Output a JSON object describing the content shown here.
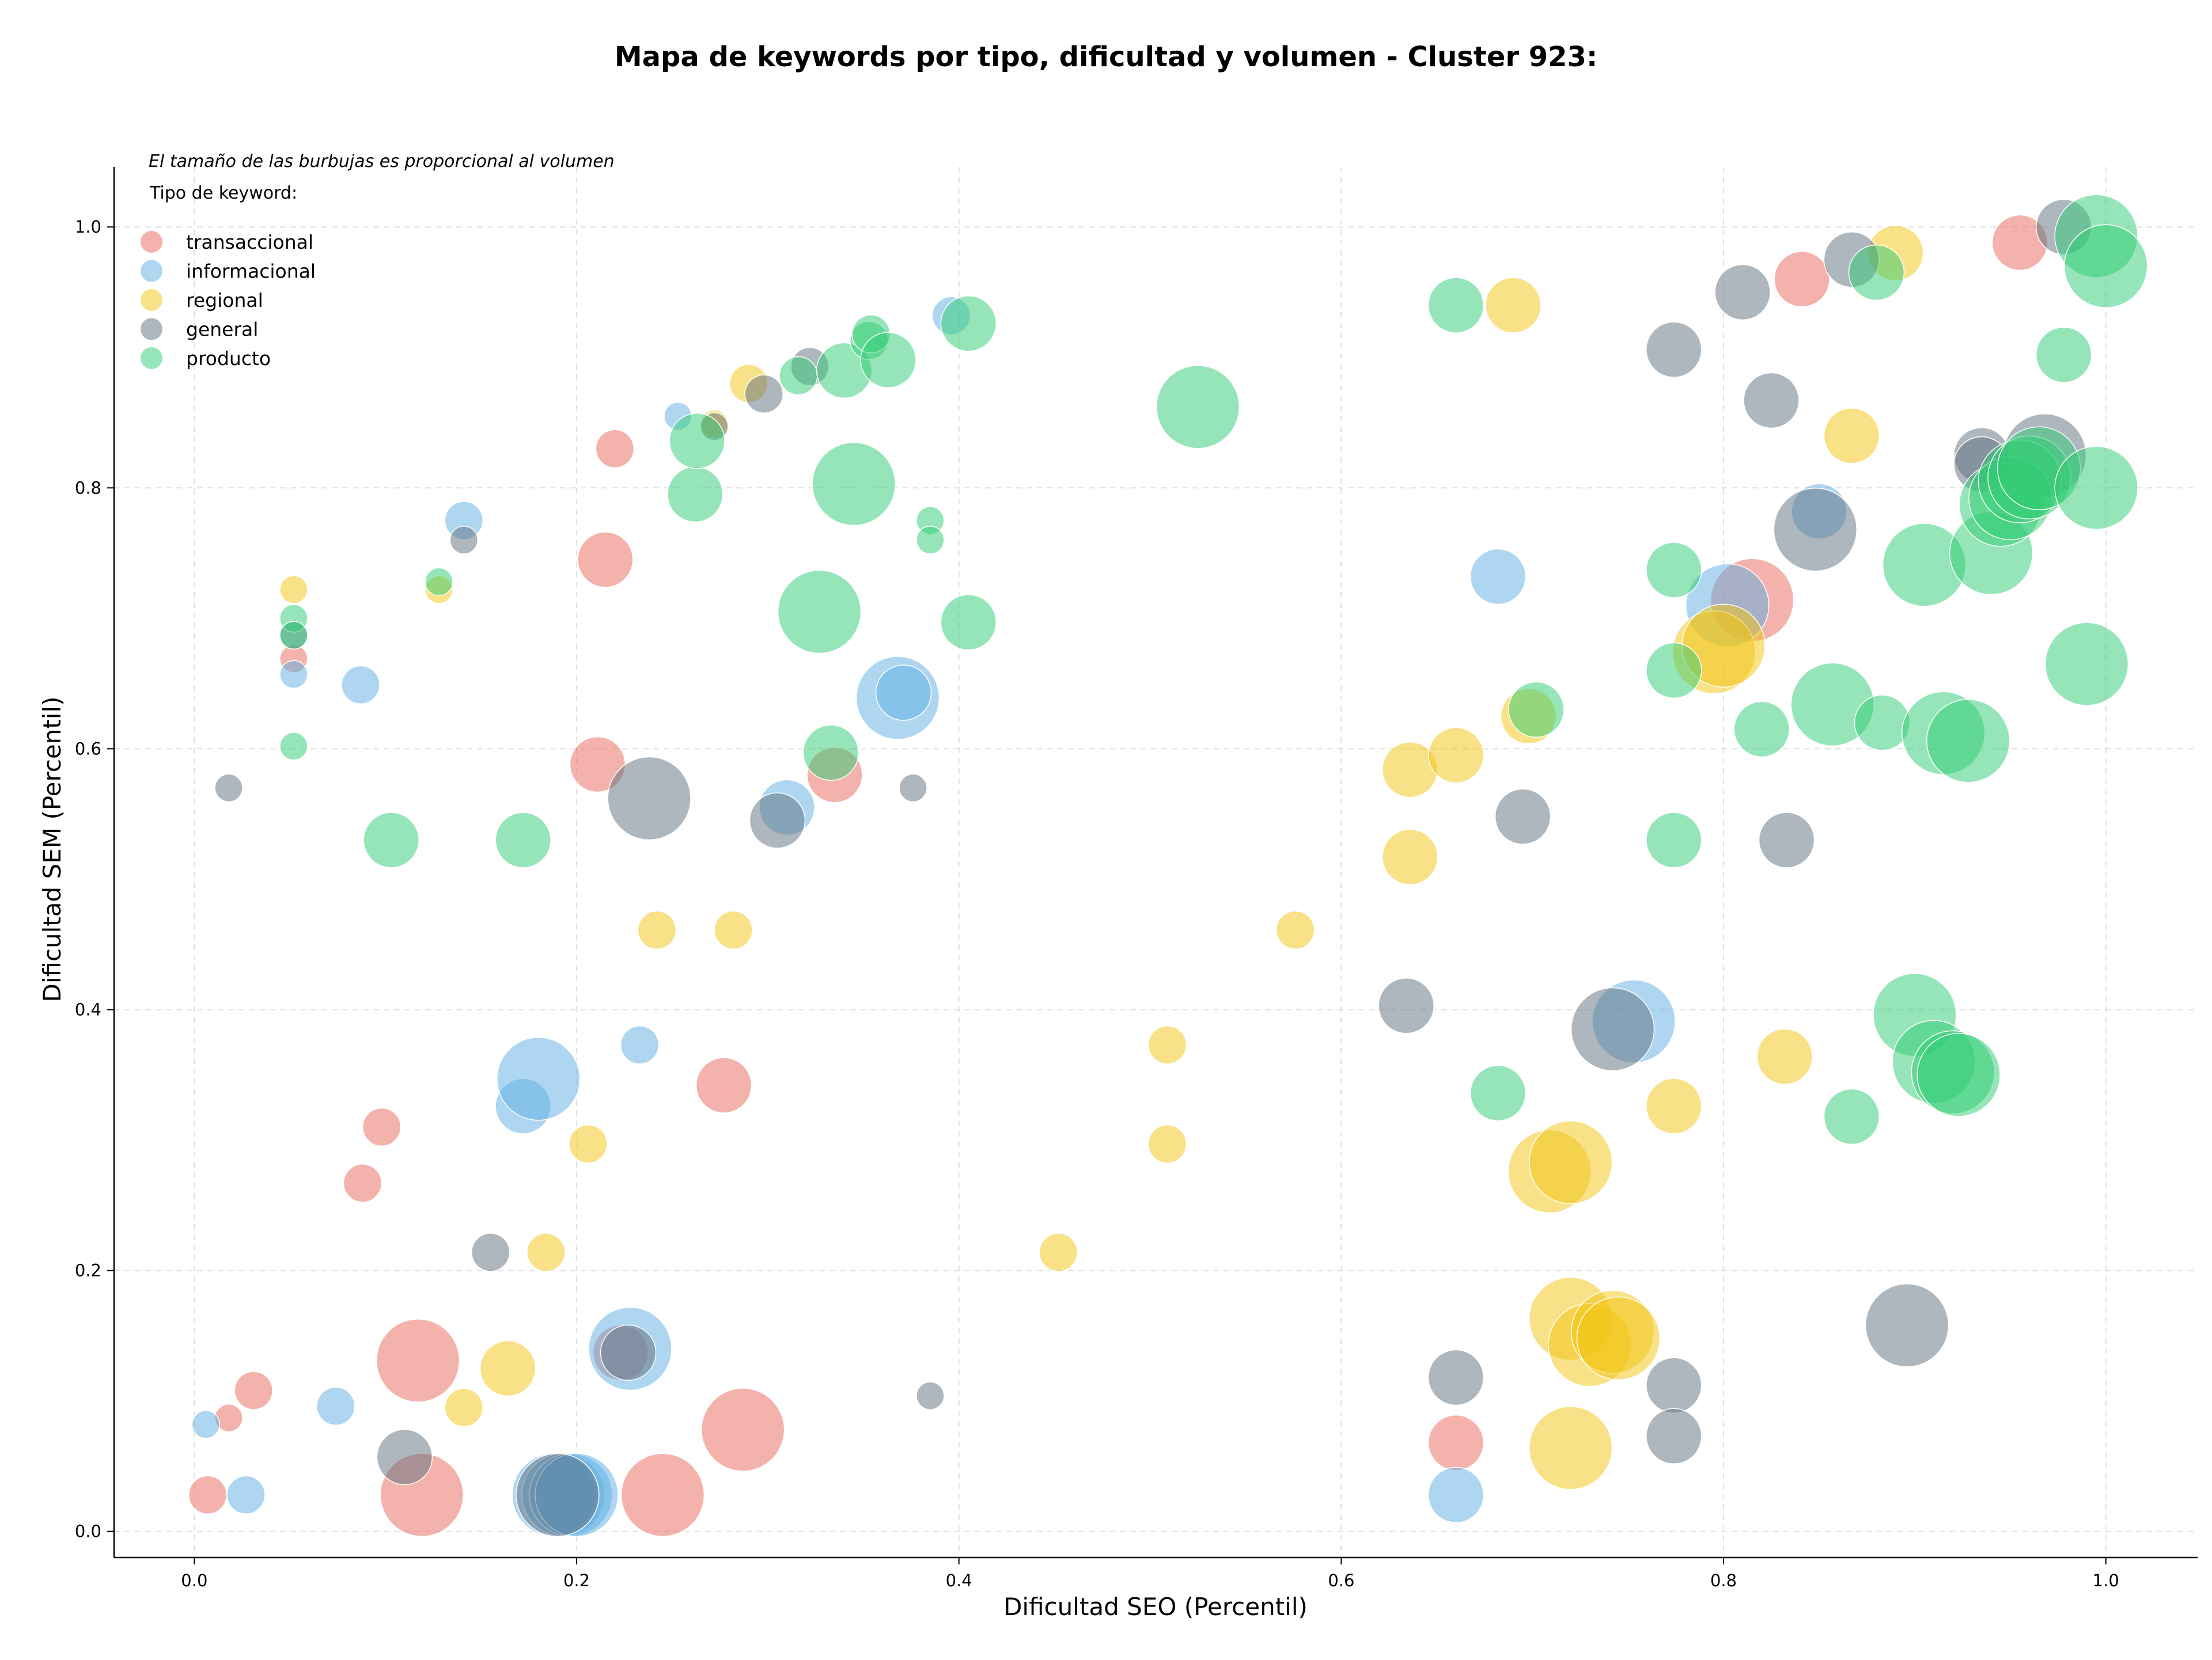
{
  "chart_data": {
    "type": "scatter",
    "title": "Mapa de keywords por tipo, dificultad y volumen - Cluster 923:",
    "xlabel": "Dificultad SEO (Percentil)",
    "ylabel": "Dificultad SEM (Percentil)",
    "xlim": [
      -0.042,
      1.048
    ],
    "ylim": [
      -0.02,
      1.046
    ],
    "xticks": [
      "0.0",
      "0.2",
      "0.4",
      "0.6",
      "0.8",
      "1.0"
    ],
    "yticks": [
      "0.0",
      "0.2",
      "0.4",
      "0.6",
      "0.8",
      "1.0"
    ],
    "grid": true,
    "note": "El tamaño de las burbujas es proporcional al volumen",
    "legend_title": "Tipo de keyword:",
    "legend_position": "top-left",
    "series": [
      {
        "name": "transaccional",
        "color": "#e8685a",
        "points": [
          [
            0.007,
            0.028,
            2
          ],
          [
            0.018,
            0.087,
            1
          ],
          [
            0.031,
            0.108,
            2
          ],
          [
            0.052,
            0.669,
            1
          ],
          [
            0.088,
            0.267,
            2
          ],
          [
            0.098,
            0.31,
            2
          ],
          [
            0.117,
            0.131,
            4
          ],
          [
            0.119,
            0.028,
            4
          ],
          [
            0.211,
            0.588,
            3
          ],
          [
            0.215,
            0.745,
            3
          ],
          [
            0.22,
            0.83,
            2
          ],
          [
            0.223,
            0.137,
            3
          ],
          [
            0.245,
            0.028,
            4
          ],
          [
            0.277,
            0.342,
            3
          ],
          [
            0.287,
            0.078,
            4
          ],
          [
            0.335,
            0.58,
            3
          ],
          [
            0.66,
            0.068,
            3
          ],
          [
            0.815,
            0.714,
            4
          ],
          [
            0.841,
            0.96,
            3
          ],
          [
            0.955,
            0.988,
            3
          ]
        ]
      },
      {
        "name": "informacional",
        "color": "#5dade2",
        "points": [
          [
            0.006,
            0.082,
            1
          ],
          [
            0.027,
            0.028,
            2
          ],
          [
            0.052,
            0.657,
            1
          ],
          [
            0.074,
            0.096,
            2
          ],
          [
            0.087,
            0.649,
            2
          ],
          [
            0.141,
            0.775,
            2
          ],
          [
            0.172,
            0.326,
            3
          ],
          [
            0.18,
            0.347,
            4
          ],
          [
            0.188,
            0.028,
            4
          ],
          [
            0.193,
            0.028,
            4
          ],
          [
            0.197,
            0.028,
            4
          ],
          [
            0.2,
            0.028,
            4
          ],
          [
            0.228,
            0.14,
            4
          ],
          [
            0.233,
            0.373,
            2
          ],
          [
            0.253,
            0.855,
            1
          ],
          [
            0.31,
            0.555,
            3
          ],
          [
            0.368,
            0.639,
            4
          ],
          [
            0.371,
            0.643,
            3
          ],
          [
            0.396,
            0.932,
            2
          ],
          [
            0.66,
            0.028,
            3
          ],
          [
            0.682,
            0.732,
            3
          ],
          [
            0.753,
            0.391,
            4
          ],
          [
            0.802,
            0.71,
            4
          ],
          [
            0.85,
            0.782,
            3
          ]
        ]
      },
      {
        "name": "regional",
        "color": "#f1c40f",
        "points": [
          [
            0.052,
            0.722,
            1
          ],
          [
            0.128,
            0.722,
            1
          ],
          [
            0.141,
            0.095,
            2
          ],
          [
            0.164,
            0.125,
            3
          ],
          [
            0.184,
            0.214,
            2
          ],
          [
            0.206,
            0.297,
            2
          ],
          [
            0.242,
            0.461,
            2
          ],
          [
            0.282,
            0.461,
            2
          ],
          [
            0.272,
            0.849,
            1
          ],
          [
            0.29,
            0.88,
            2
          ],
          [
            0.452,
            0.214,
            2
          ],
          [
            0.509,
            0.373,
            2
          ],
          [
            0.509,
            0.297,
            2
          ],
          [
            0.576,
            0.461,
            2
          ],
          [
            0.636,
            0.584,
            3
          ],
          [
            0.636,
            0.517,
            3
          ],
          [
            0.66,
            0.595,
            3
          ],
          [
            0.69,
            0.94,
            3
          ],
          [
            0.698,
            0.625,
            3
          ],
          [
            0.709,
            0.276,
            4
          ],
          [
            0.72,
            0.283,
            4
          ],
          [
            0.72,
            0.163,
            4
          ],
          [
            0.72,
            0.064,
            4
          ],
          [
            0.73,
            0.143,
            4
          ],
          [
            0.742,
            0.153,
            4
          ],
          [
            0.745,
            0.148,
            4
          ],
          [
            0.774,
            0.326,
            3
          ],
          [
            0.795,
            0.674,
            4
          ],
          [
            0.8,
            0.679,
            4
          ],
          [
            0.832,
            0.364,
            3
          ],
          [
            0.867,
            0.84,
            3
          ],
          [
            0.89,
            0.98,
            3
          ]
        ]
      },
      {
        "name": "general",
        "color": "#5d6d7e",
        "points": [
          [
            0.018,
            0.57,
            1
          ],
          [
            0.052,
            0.687,
            1
          ],
          [
            0.11,
            0.057,
            3
          ],
          [
            0.141,
            0.76,
            1
          ],
          [
            0.155,
            0.214,
            2
          ],
          [
            0.19,
            0.028,
            4
          ],
          [
            0.227,
            0.137,
            3
          ],
          [
            0.238,
            0.562,
            4
          ],
          [
            0.272,
            0.847,
            1
          ],
          [
            0.298,
            0.872,
            2
          ],
          [
            0.305,
            0.545,
            3
          ],
          [
            0.322,
            0.893,
            2
          ],
          [
            0.376,
            0.57,
            1
          ],
          [
            0.385,
            0.104,
            1
          ],
          [
            0.634,
            0.403,
            3
          ],
          [
            0.66,
            0.118,
            3
          ],
          [
            0.695,
            0.548,
            3
          ],
          [
            0.742,
            0.385,
            4
          ],
          [
            0.774,
            0.906,
            3
          ],
          [
            0.774,
            0.112,
            3
          ],
          [
            0.774,
            0.073,
            3
          ],
          [
            0.81,
            0.95,
            3
          ],
          [
            0.825,
            0.867,
            3
          ],
          [
            0.833,
            0.53,
            3
          ],
          [
            0.848,
            0.768,
            4
          ],
          [
            0.867,
            0.975,
            3
          ],
          [
            0.896,
            0.158,
            4
          ],
          [
            0.935,
            0.825,
            3
          ],
          [
            0.935,
            0.818,
            3
          ],
          [
            0.968,
            0.825,
            4
          ],
          [
            0.978,
            1.0,
            3
          ]
        ]
      },
      {
        "name": "producto",
        "color": "#2ecc71",
        "points": [
          [
            0.052,
            0.602,
            1
          ],
          [
            0.052,
            0.7,
            1
          ],
          [
            0.052,
            0.687,
            1
          ],
          [
            0.103,
            0.53,
            3
          ],
          [
            0.128,
            0.728,
            1
          ],
          [
            0.172,
            0.53,
            3
          ],
          [
            0.262,
            0.795,
            3
          ],
          [
            0.263,
            0.836,
            3
          ],
          [
            0.316,
            0.886,
            2
          ],
          [
            0.327,
            0.705,
            4
          ],
          [
            0.333,
            0.597,
            3
          ],
          [
            0.34,
            0.89,
            3
          ],
          [
            0.345,
            0.803,
            4
          ],
          [
            0.353,
            0.913,
            2
          ],
          [
            0.354,
            0.918,
            2
          ],
          [
            0.363,
            0.898,
            3
          ],
          [
            0.385,
            0.775,
            1
          ],
          [
            0.385,
            0.76,
            1
          ],
          [
            0.405,
            0.926,
            3
          ],
          [
            0.405,
            0.697,
            3
          ],
          [
            0.525,
            0.862,
            4
          ],
          [
            0.66,
            0.94,
            3
          ],
          [
            0.682,
            0.336,
            3
          ],
          [
            0.702,
            0.63,
            3
          ],
          [
            0.774,
            0.737,
            3
          ],
          [
            0.774,
            0.66,
            3
          ],
          [
            0.774,
            0.53,
            3
          ],
          [
            0.82,
            0.615,
            3
          ],
          [
            0.857,
            0.634,
            4
          ],
          [
            0.867,
            0.318,
            3
          ],
          [
            0.88,
            0.965,
            3
          ],
          [
            0.883,
            0.62,
            3
          ],
          [
            0.9,
            0.396,
            4
          ],
          [
            0.905,
            0.741,
            4
          ],
          [
            0.91,
            0.36,
            4
          ],
          [
            0.915,
            0.612,
            4
          ],
          [
            0.92,
            0.352,
            4
          ],
          [
            0.923,
            0.35,
            4
          ],
          [
            0.928,
            0.606,
            4
          ],
          [
            0.94,
            0.75,
            4
          ],
          [
            0.945,
            0.787,
            4
          ],
          [
            0.95,
            0.792,
            4
          ],
          [
            0.955,
            0.805,
            4
          ],
          [
            0.96,
            0.808,
            4
          ],
          [
            0.965,
            0.815,
            4
          ],
          [
            0.978,
            0.902,
            3
          ],
          [
            0.99,
            0.665,
            4
          ],
          [
            0.995,
            0.8,
            4
          ],
          [
            0.995,
            0.993,
            4
          ],
          [
            1.0,
            0.97,
            4
          ]
        ]
      }
    ]
  }
}
